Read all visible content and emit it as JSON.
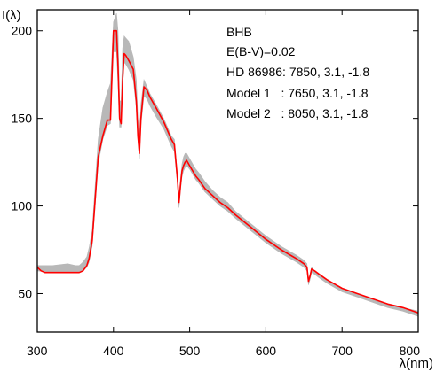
{
  "chart_data": {
    "type": "line",
    "ylabel": "I(λ)",
    "xlabel": "λ(nm)",
    "xlim": [
      300,
      800
    ],
    "ylim": [
      28,
      212
    ],
    "xticks": [
      300,
      400,
      500,
      600,
      700,
      800
    ],
    "yticks": [
      50,
      100,
      150,
      200
    ],
    "grid": false,
    "annotations": [
      "BHB",
      "E(B-V)=0.02",
      "HD 86986: 7850, 3.1, -1.8",
      "Model 1   : 7650, 3.1, -1.8",
      "Model 2   : 8050, 3.1, -1.8"
    ],
    "colors": {
      "observed": "#ff0000",
      "models_band": "#b8b8b8",
      "axes": "#000000"
    },
    "series": [
      {
        "role": "observed",
        "x": [
          300,
          305,
          310,
          320,
          340,
          350,
          355,
          360,
          365,
          368,
          372,
          376,
          380,
          386,
          392,
          396,
          400,
          404,
          406,
          408,
          410,
          412,
          414,
          416,
          420,
          426,
          430,
          432,
          434,
          436,
          440,
          444,
          448,
          456,
          466,
          476,
          480,
          484,
          486,
          488,
          490,
          492,
          494,
          496,
          500,
          504,
          508,
          512,
          520,
          530,
          540,
          550,
          560,
          580,
          600,
          620,
          640,
          650,
          654,
          656,
          658,
          660,
          664,
          670,
          680,
          700,
          720,
          740,
          760,
          780,
          800
        ],
        "y": [
          65,
          63,
          62,
          62,
          62,
          62,
          62,
          63,
          66,
          70,
          80,
          104,
          128,
          140,
          149,
          149,
          200,
          200,
          180,
          150,
          147,
          172,
          187,
          186,
          183,
          178,
          160,
          140,
          130,
          150,
          168,
          166,
          162,
          156,
          148,
          138,
          135,
          115,
          102,
          112,
          120,
          123,
          125,
          126,
          123,
          120,
          117,
          115,
          110,
          106,
          102,
          99,
          95,
          88,
          81,
          75,
          70,
          67,
          65,
          57,
          60,
          64,
          63,
          61,
          58,
          53,
          50,
          47,
          44,
          42,
          39
        ]
      },
      {
        "role": "model-upper",
        "x": [
          300,
          320,
          340,
          350,
          355,
          360,
          365,
          368,
          372,
          376,
          380,
          386,
          392,
          396,
          400,
          404,
          406,
          408,
          410,
          412,
          414,
          416,
          420,
          426,
          430,
          432,
          434,
          436,
          440,
          444,
          448,
          456,
          466,
          476,
          480,
          484,
          486,
          488,
          490,
          492,
          494,
          496,
          500,
          504,
          508,
          512,
          520,
          530,
          540,
          550,
          560,
          580,
          600,
          620,
          640,
          650,
          654,
          656,
          658,
          660,
          664,
          670,
          680,
          700,
          720,
          740,
          760,
          780,
          800
        ],
        "y": [
          66,
          66,
          67,
          66,
          66,
          68,
          71,
          76,
          86,
          112,
          138,
          156,
          165,
          170,
          205,
          210,
          200,
          160,
          160,
          190,
          197,
          196,
          194,
          185,
          172,
          150,
          140,
          158,
          172,
          168,
          164,
          158,
          150,
          140,
          138,
          118,
          106,
          116,
          124,
          128,
          130,
          130,
          127,
          124,
          121,
          119,
          114,
          109,
          105,
          102,
          97,
          90,
          83,
          77,
          72,
          69,
          67,
          59,
          61,
          65,
          63,
          61,
          58,
          53,
          50,
          47,
          44,
          42,
          40
        ]
      },
      {
        "role": "model-lower",
        "x": [
          300,
          320,
          340,
          350,
          355,
          360,
          365,
          368,
          372,
          376,
          380,
          386,
          392,
          396,
          400,
          404,
          406,
          408,
          410,
          412,
          414,
          416,
          420,
          426,
          430,
          432,
          434,
          436,
          440,
          444,
          448,
          456,
          466,
          476,
          480,
          484,
          486,
          488,
          490,
          492,
          494,
          496,
          500,
          504,
          508,
          512,
          520,
          530,
          540,
          550,
          560,
          580,
          600,
          620,
          640,
          650,
          654,
          656,
          658,
          660,
          664,
          670,
          680,
          700,
          720,
          740,
          760,
          780,
          800
        ],
        "y": [
          63,
          62,
          62,
          62,
          62,
          63,
          65,
          68,
          77,
          100,
          124,
          138,
          146,
          147,
          188,
          188,
          170,
          145,
          145,
          168,
          182,
          181,
          178,
          172,
          156,
          138,
          127,
          146,
          163,
          161,
          157,
          151,
          144,
          134,
          131,
          112,
          99,
          109,
          117,
          120,
          122,
          123,
          121,
          118,
          115,
          113,
          108,
          104,
          100,
          97,
          93,
          86,
          79,
          73,
          68,
          65,
          63,
          55,
          58,
          62,
          61,
          59,
          56,
          51,
          48,
          45,
          42,
          40,
          37
        ]
      }
    ]
  }
}
